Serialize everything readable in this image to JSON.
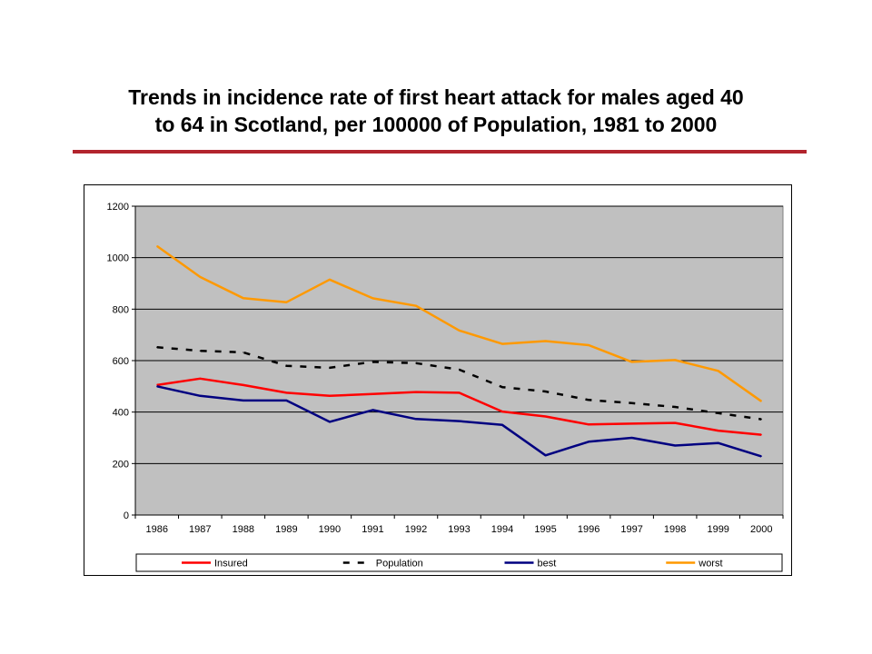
{
  "title": {
    "line1": "Trends in incidence rate of first heart attack for males aged 40",
    "line2": "to 64 in Scotland,  per 100000 of Population, 1981 to 2000"
  },
  "colors": {
    "title_rule": "#b2242d",
    "plot_bg": "#c0c0c0",
    "Insured": "#ff0000",
    "Population": "#000000",
    "best": "#000080",
    "worst": "#ff9900"
  },
  "chart_data": {
    "type": "line",
    "title": "",
    "xlabel": "",
    "ylabel": "",
    "categories": [
      "1986",
      "1987",
      "1988",
      "1989",
      "1990",
      "1991",
      "1992",
      "1993",
      "1994",
      "1995",
      "1996",
      "1997",
      "1998",
      "1999",
      "2000"
    ],
    "ylim": [
      0,
      1200
    ],
    "yticks": [
      0,
      200,
      400,
      600,
      800,
      1000,
      1200
    ],
    "grid": true,
    "legend_position": "bottom",
    "series": [
      {
        "name": "Insured",
        "color": "#ff0000",
        "dashed": false,
        "values": [
          505,
          530,
          505,
          475,
          463,
          470,
          478,
          475,
          402,
          383,
          352,
          355,
          358,
          328,
          312
        ]
      },
      {
        "name": "Population",
        "color": "#000000",
        "dashed": true,
        "values": [
          652,
          638,
          632,
          580,
          572,
          595,
          590,
          565,
          497,
          480,
          447,
          435,
          420,
          396,
          372
        ]
      },
      {
        "name": "best",
        "color": "#000080",
        "dashed": false,
        "values": [
          500,
          463,
          445,
          445,
          362,
          408,
          373,
          365,
          350,
          232,
          285,
          300,
          270,
          280,
          228
        ]
      },
      {
        "name": "worst",
        "color": "#ff9900",
        "dashed": false,
        "values": [
          1045,
          925,
          843,
          827,
          915,
          842,
          813,
          717,
          665,
          676,
          660,
          595,
          602,
          560,
          442
        ]
      }
    ]
  }
}
